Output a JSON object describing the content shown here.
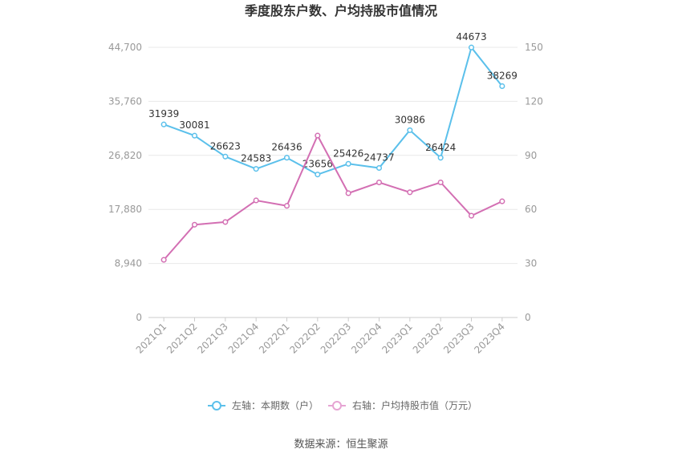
{
  "chart_data": {
    "type": "line",
    "title": "季度股东户数、户均持股市值情况",
    "categories": [
      "2021Q1",
      "2021Q2",
      "2021Q3",
      "2021Q4",
      "2022Q1",
      "2022Q2",
      "2022Q3",
      "2022Q4",
      "2023Q1",
      "2023Q2",
      "2023Q3",
      "2023Q4"
    ],
    "left_axis": {
      "ylim": [
        0,
        44700
      ],
      "ticks": [
        "0",
        "8,940",
        "17,880",
        "26,820",
        "35,760",
        "44,700"
      ],
      "tick_values": [
        0,
        8940,
        17880,
        26820,
        35760,
        44700
      ]
    },
    "right_axis": {
      "ylim": [
        0,
        150
      ],
      "ticks": [
        "0",
        "30",
        "60",
        "90",
        "120",
        "150"
      ],
      "tick_values": [
        0,
        30,
        60,
        90,
        120,
        150
      ]
    },
    "series": [
      {
        "name": "左轴：本期数（户）",
        "axis": "left",
        "color": "#5bc0eb",
        "values": [
          31939,
          30081,
          26623,
          24583,
          26436,
          23656,
          25426,
          24737,
          30986,
          26424,
          44673,
          38269
        ],
        "labels": [
          "31939",
          "30081",
          "26623",
          "24583",
          "26436",
          "23656",
          "25426",
          "24737",
          "30986",
          "26424",
          "44673",
          "38269"
        ]
      },
      {
        "name": "右轴：户均持股市值（万元）",
        "axis": "right",
        "color": "#d36fb3",
        "values": [
          32,
          51.5,
          53,
          65,
          62,
          101,
          69,
          75,
          69.5,
          75,
          56.5,
          64.5
        ]
      }
    ],
    "grid": true,
    "legend_position": "bottom",
    "source": "数据来源：恒生聚源"
  }
}
